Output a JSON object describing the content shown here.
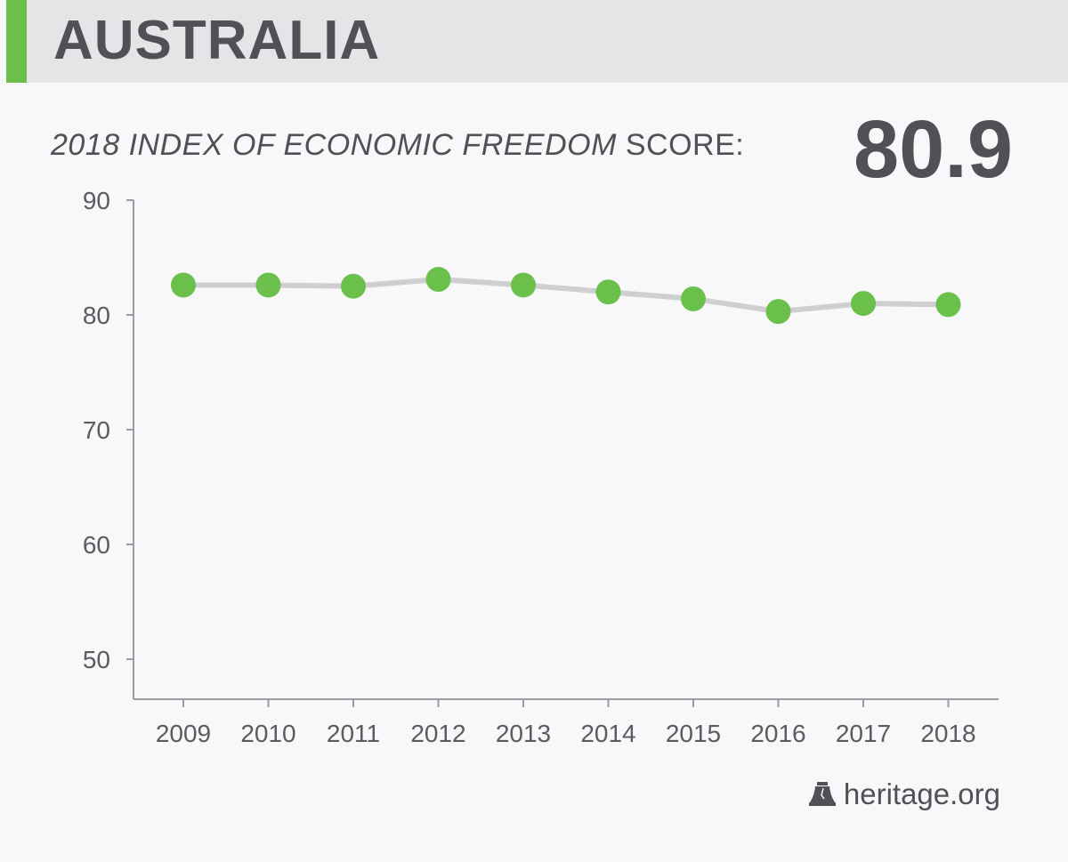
{
  "header": {
    "title": "AUSTRALIA",
    "accent_color": "#6ac04b"
  },
  "score_line": {
    "label_italic": "2018 INDEX OF ECONOMIC FREEDOM",
    "label_plain": " SCORE:",
    "value": "80.9"
  },
  "footer": {
    "logo_icon": "liberty-bell-icon",
    "text": "heritage.org"
  },
  "chart_data": {
    "type": "line",
    "categories": [
      "2009",
      "2010",
      "2011",
      "2012",
      "2013",
      "2014",
      "2015",
      "2016",
      "2017",
      "2018"
    ],
    "series": [
      {
        "values": [
          82.6,
          82.6,
          82.5,
          83.1,
          82.6,
          82.0,
          81.4,
          80.3,
          81.0,
          80.9
        ],
        "marker_color": "#6ac04b",
        "line_color": "#cfcfd1"
      }
    ],
    "yticks": [
      "90",
      "80",
      "70",
      "60",
      "50"
    ],
    "ylim": [
      50,
      90
    ],
    "grid": false
  }
}
